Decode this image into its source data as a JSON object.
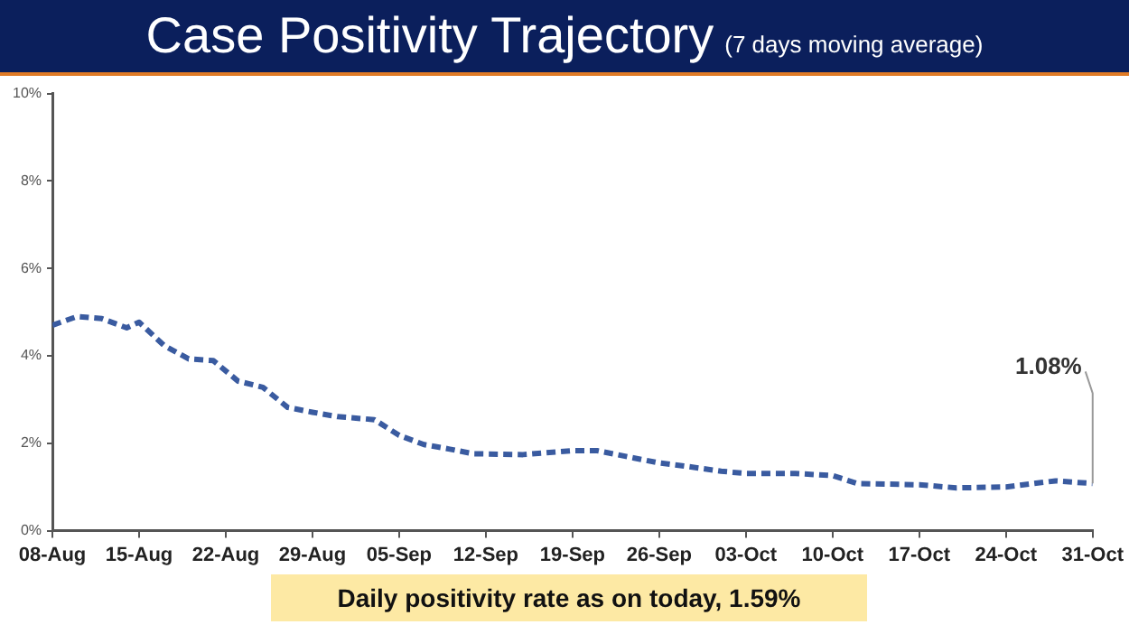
{
  "chart_data": {
    "type": "line",
    "title": "Case Positivity Trajectory",
    "subtitle": "(7 days moving average)",
    "x": [
      "--08-08",
      "--08-10",
      "--08-12",
      "--08-14",
      "--08-15",
      "--08-17",
      "--08-19",
      "--08-21",
      "--08-23",
      "--08-25",
      "--08-27",
      "--08-29",
      "--08-31",
      "--09-03",
      "--09-05",
      "--09-07",
      "--09-09",
      "--09-11",
      "--09-15",
      "--09-19",
      "--09-21",
      "--09-24",
      "--09-26",
      "--09-28",
      "--10-01",
      "--10-03",
      "--10-07",
      "--10-10",
      "--10-12",
      "--10-17",
      "--10-20",
      "--10-24",
      "--10-28",
      "--10-31"
    ],
    "series": [
      {
        "color": "#3a5ba0",
        "values": [
          4.7,
          4.9,
          4.85,
          4.64,
          4.77,
          4.24,
          3.93,
          3.89,
          3.42,
          3.28,
          2.82,
          2.71,
          2.61,
          2.54,
          2.18,
          1.97,
          1.87,
          1.76,
          1.74,
          1.83,
          1.83,
          1.66,
          1.55,
          1.48,
          1.36,
          1.31,
          1.31,
          1.26,
          1.08,
          1.05,
          0.98,
          1.0,
          1.14,
          1.08
        ]
      }
    ],
    "xlim": [
      "--08-08",
      "--10-31"
    ],
    "xticks": [
      {
        "value": "--08-08",
        "label": "08-Aug"
      },
      {
        "value": "--08-15",
        "label": "15-Aug"
      },
      {
        "value": "--08-22",
        "label": "22-Aug"
      },
      {
        "value": "--08-29",
        "label": "29-Aug"
      },
      {
        "value": "--09-05",
        "label": "05-Sep"
      },
      {
        "value": "--09-12",
        "label": "12-Sep"
      },
      {
        "value": "--09-19",
        "label": "19-Sep"
      },
      {
        "value": "--09-26",
        "label": "26-Sep"
      },
      {
        "value": "--10-03",
        "label": "03-Oct"
      },
      {
        "value": "--10-10",
        "label": "10-Oct"
      },
      {
        "value": "--10-17",
        "label": "17-Oct"
      },
      {
        "value": "--10-24",
        "label": "24-Oct"
      },
      {
        "value": "--10-31",
        "label": "31-Oct"
      }
    ],
    "ylim": [
      0,
      10
    ],
    "yticks": [
      {
        "value": 0,
        "label": "0%"
      },
      {
        "value": 2,
        "label": "2%"
      },
      {
        "value": 4,
        "label": "4%"
      },
      {
        "value": 6,
        "label": "6%"
      },
      {
        "value": 8,
        "label": "8%"
      },
      {
        "value": 10,
        "label": "10%"
      }
    ],
    "grid": false,
    "legend": false,
    "marker": "none",
    "line_style": "dashed",
    "annotations": [
      {
        "text": "1.08%",
        "x": "--10-31",
        "y": 1.08
      },
      "Daily positivity rate as on today, 1.59%"
    ]
  }
}
